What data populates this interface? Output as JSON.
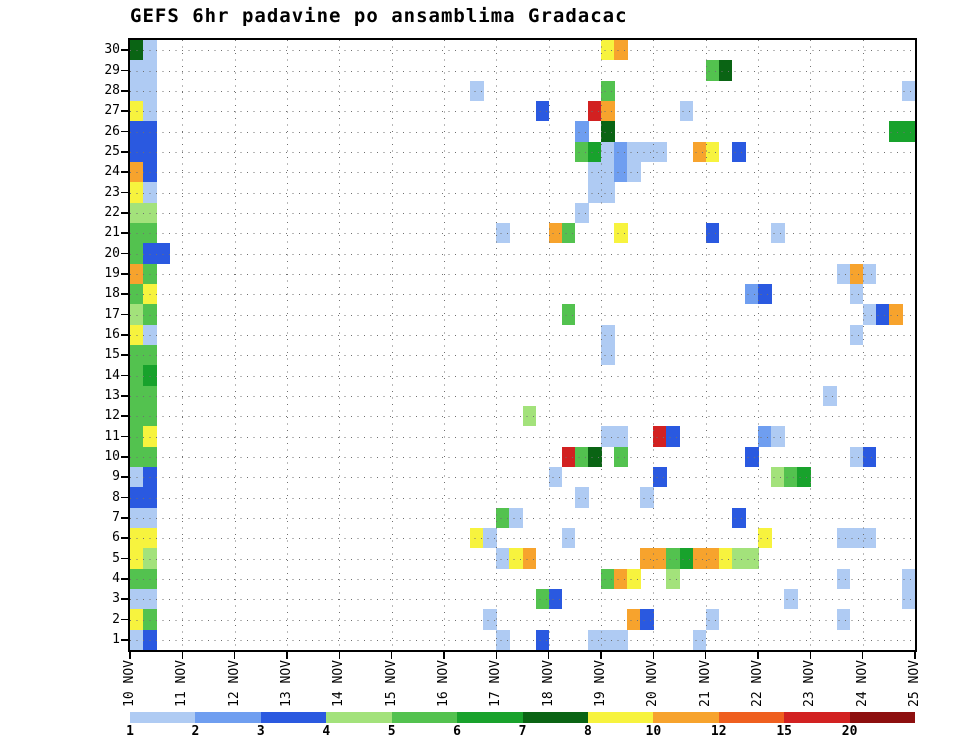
{
  "title": "GEFS 6hr padavine po ansamblima Gradacac",
  "chart_data": {
    "type": "heatmap",
    "title": "GEFS 6hr padavine po ansamblima Gradacac",
    "description": "GEFS 6-hourly precipitation per ensemble member (1-30) vs time (6h steps, 10-25 NOV)",
    "grid": "dotted",
    "legend_position": "bottom",
    "y_ticks": [
      "1",
      "2",
      "3",
      "4",
      "5",
      "6",
      "7",
      "8",
      "9",
      "10",
      "11",
      "12",
      "13",
      "14",
      "15",
      "16",
      "17",
      "18",
      "19",
      "20",
      "21",
      "22",
      "23",
      "24",
      "25",
      "26",
      "27",
      "28",
      "29",
      "30"
    ],
    "x_ticks": [
      "10 NOV",
      "11 NOV",
      "12 NOV",
      "13 NOV",
      "14 NOV",
      "15 NOV",
      "16 NOV",
      "17 NOV",
      "18 NOV",
      "19 NOV",
      "20 NOV",
      "21 NOV",
      "22 NOV",
      "23 NOV",
      "24 NOV",
      "25 NOV"
    ],
    "steps_per_day": 4,
    "n_cols": 60,
    "legend": {
      "values": [
        1,
        2,
        3,
        4,
        5,
        6,
        7,
        8,
        10,
        12,
        15,
        20
      ],
      "colors": [
        "#afcbf3",
        "#6f9ef0",
        "#2a59e0",
        "#a3e27b",
        "#53c24f",
        "#18a22c",
        "#0a6414",
        "#f7f33e",
        "#f7a32d",
        "#ef5f1f",
        "#d22121",
        "#8d0f0f"
      ]
    },
    "cells": [
      [
        30,
        0,
        7
      ],
      [
        30,
        1,
        1
      ],
      [
        29,
        0,
        1
      ],
      [
        29,
        1,
        1
      ],
      [
        28,
        0,
        1
      ],
      [
        28,
        1,
        1
      ],
      [
        27,
        0,
        8
      ],
      [
        27,
        1,
        1
      ],
      [
        26,
        0,
        3
      ],
      [
        26,
        1,
        3
      ],
      [
        25,
        0,
        3
      ],
      [
        25,
        1,
        3
      ],
      [
        24,
        0,
        10
      ],
      [
        24,
        1,
        3
      ],
      [
        23,
        0,
        8
      ],
      [
        23,
        1,
        1
      ],
      [
        22,
        0,
        4
      ],
      [
        22,
        1,
        4
      ],
      [
        21,
        0,
        5
      ],
      [
        21,
        1,
        5
      ],
      [
        20,
        0,
        5
      ],
      [
        20,
        1,
        3
      ],
      [
        20,
        2,
        3
      ],
      [
        19,
        0,
        10
      ],
      [
        19,
        1,
        5
      ],
      [
        18,
        0,
        5
      ],
      [
        18,
        1,
        8
      ],
      [
        17,
        0,
        4
      ],
      [
        17,
        1,
        5
      ],
      [
        16,
        0,
        8
      ],
      [
        16,
        1,
        1
      ],
      [
        15,
        0,
        5
      ],
      [
        15,
        1,
        5
      ],
      [
        14,
        0,
        5
      ],
      [
        14,
        1,
        6
      ],
      [
        13,
        0,
        5
      ],
      [
        13,
        1,
        5
      ],
      [
        12,
        0,
        5
      ],
      [
        12,
        1,
        5
      ],
      [
        11,
        0,
        5
      ],
      [
        11,
        1,
        8
      ],
      [
        10,
        0,
        5
      ],
      [
        10,
        1,
        5
      ],
      [
        9,
        0,
        1
      ],
      [
        9,
        1,
        3
      ],
      [
        8,
        0,
        3
      ],
      [
        8,
        1,
        3
      ],
      [
        7,
        0,
        1
      ],
      [
        7,
        1,
        1
      ],
      [
        6,
        0,
        8
      ],
      [
        6,
        1,
        8
      ],
      [
        5,
        0,
        8
      ],
      [
        5,
        1,
        4
      ],
      [
        4,
        0,
        5
      ],
      [
        4,
        1,
        5
      ],
      [
        3,
        0,
        1
      ],
      [
        3,
        1,
        1
      ],
      [
        2,
        0,
        8
      ],
      [
        2,
        1,
        5
      ],
      [
        1,
        0,
        1
      ],
      [
        1,
        1,
        3
      ],
      [
        30,
        36,
        8
      ],
      [
        30,
        37,
        10
      ],
      [
        29,
        44,
        5
      ],
      [
        29,
        45,
        7
      ],
      [
        28,
        26,
        1
      ],
      [
        28,
        36,
        5
      ],
      [
        28,
        59,
        1
      ],
      [
        27,
        31,
        3
      ],
      [
        27,
        35,
        15
      ],
      [
        27,
        36,
        10
      ],
      [
        27,
        42,
        1
      ],
      [
        26,
        34,
        2
      ],
      [
        26,
        36,
        7
      ],
      [
        26,
        58,
        6
      ],
      [
        26,
        59,
        6
      ],
      [
        25,
        34,
        5
      ],
      [
        25,
        35,
        6
      ],
      [
        25,
        36,
        1
      ],
      [
        25,
        37,
        2
      ],
      [
        25,
        38,
        1
      ],
      [
        25,
        39,
        1
      ],
      [
        25,
        40,
        1
      ],
      [
        25,
        43,
        10
      ],
      [
        25,
        44,
        8
      ],
      [
        25,
        46,
        3
      ],
      [
        24,
        35,
        1
      ],
      [
        24,
        36,
        1
      ],
      [
        24,
        37,
        2
      ],
      [
        24,
        38,
        1
      ],
      [
        23,
        35,
        1
      ],
      [
        23,
        36,
        1
      ],
      [
        22,
        34,
        1
      ],
      [
        21,
        28,
        1
      ],
      [
        21,
        32,
        10
      ],
      [
        21,
        33,
        5
      ],
      [
        21,
        37,
        8
      ],
      [
        21,
        44,
        3
      ],
      [
        21,
        49,
        1
      ],
      [
        19,
        54,
        1
      ],
      [
        19,
        55,
        10
      ],
      [
        19,
        56,
        1
      ],
      [
        18,
        47,
        2
      ],
      [
        18,
        48,
        3
      ],
      [
        18,
        55,
        1
      ],
      [
        17,
        33,
        5
      ],
      [
        17,
        56,
        1
      ],
      [
        17,
        57,
        3
      ],
      [
        17,
        58,
        10
      ],
      [
        16,
        36,
        1
      ],
      [
        16,
        55,
        1
      ],
      [
        15,
        36,
        1
      ],
      [
        13,
        53,
        1
      ],
      [
        12,
        30,
        4
      ],
      [
        11,
        36,
        1
      ],
      [
        11,
        37,
        1
      ],
      [
        11,
        40,
        15
      ],
      [
        11,
        41,
        3
      ],
      [
        11,
        48,
        2
      ],
      [
        11,
        49,
        1
      ],
      [
        10,
        33,
        15
      ],
      [
        10,
        34,
        5
      ],
      [
        10,
        35,
        7
      ],
      [
        10,
        37,
        5
      ],
      [
        10,
        47,
        3
      ],
      [
        10,
        55,
        1
      ],
      [
        10,
        56,
        3
      ],
      [
        9,
        32,
        1
      ],
      [
        9,
        40,
        3
      ],
      [
        9,
        49,
        4
      ],
      [
        9,
        50,
        5
      ],
      [
        9,
        51,
        6
      ],
      [
        8,
        34,
        1
      ],
      [
        8,
        39,
        1
      ],
      [
        7,
        28,
        5
      ],
      [
        7,
        29,
        1
      ],
      [
        7,
        46,
        3
      ],
      [
        6,
        26,
        8
      ],
      [
        6,
        27,
        1
      ],
      [
        6,
        33,
        1
      ],
      [
        6,
        48,
        8
      ],
      [
        6,
        54,
        1
      ],
      [
        6,
        55,
        1
      ],
      [
        6,
        56,
        1
      ],
      [
        5,
        28,
        1
      ],
      [
        5,
        29,
        8
      ],
      [
        5,
        30,
        10
      ],
      [
        5,
        39,
        10
      ],
      [
        5,
        40,
        10
      ],
      [
        5,
        41,
        5
      ],
      [
        5,
        42,
        6
      ],
      [
        5,
        43,
        10
      ],
      [
        5,
        44,
        10
      ],
      [
        5,
        45,
        8
      ],
      [
        5,
        46,
        4
      ],
      [
        5,
        47,
        4
      ],
      [
        4,
        36,
        5
      ],
      [
        4,
        37,
        10
      ],
      [
        4,
        38,
        8
      ],
      [
        4,
        41,
        4
      ],
      [
        4,
        54,
        1
      ],
      [
        4,
        59,
        1
      ],
      [
        3,
        31,
        5
      ],
      [
        3,
        32,
        3
      ],
      [
        3,
        50,
        1
      ],
      [
        3,
        59,
        1
      ],
      [
        2,
        27,
        1
      ],
      [
        2,
        38,
        10
      ],
      [
        2,
        39,
        3
      ],
      [
        2,
        44,
        1
      ],
      [
        2,
        54,
        1
      ],
      [
        1,
        28,
        1
      ],
      [
        1,
        31,
        3
      ],
      [
        1,
        35,
        1
      ],
      [
        1,
        36,
        1
      ],
      [
        1,
        37,
        1
      ],
      [
        1,
        43,
        1
      ]
    ]
  }
}
